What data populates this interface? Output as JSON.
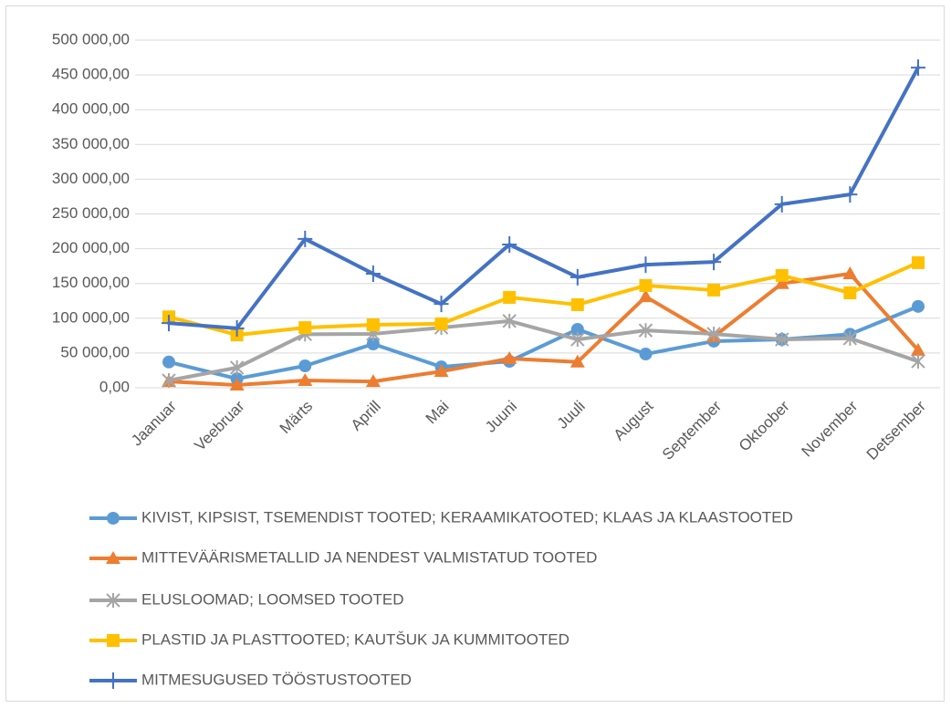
{
  "chart_data": {
    "type": "line",
    "categories": [
      "Jaanuar",
      "Veebruar",
      "Märts",
      "Aprill",
      "Mai",
      "Juuni",
      "Juuli",
      "August",
      "September",
      "Oktoober",
      "November",
      "Detsember"
    ],
    "series": [
      {
        "name": "KIVIST, KIPSIST, TSEMENDIST TOOTED; KERAAMIKATOOTED; KLAAS JA KLAASTOOTED",
        "color": "#5b9bd5",
        "marker": "circle",
        "values": [
          37000,
          13000,
          31500,
          63000,
          30000,
          38000,
          84000,
          48500,
          67000,
          69500,
          77000,
          117000
        ]
      },
      {
        "name": "MITTEVÄÄRISMETALLID JA NENDEST VALMISTATUD TOOTED",
        "color": "#ed7d31",
        "marker": "triangle",
        "values": [
          9000,
          4000,
          10500,
          9000,
          23500,
          42000,
          37000,
          131000,
          73500,
          150000,
          164000,
          54000
        ]
      },
      {
        "name": "ELUSLOOMAD; LOOMSED TOOTED",
        "color": "#a5a5a5",
        "marker": "star",
        "values": [
          10500,
          29000,
          77000,
          77500,
          86500,
          96000,
          69500,
          82500,
          77500,
          69500,
          71000,
          38000
        ]
      },
      {
        "name": "PLASTID JA PLASTTOOTED; KAUTŠUK JA KUMMITOOTED",
        "color": "#ffc000",
        "marker": "square",
        "values": [
          102000,
          76000,
          86500,
          90500,
          92000,
          130000,
          119500,
          147000,
          140500,
          161500,
          136500,
          180000
        ]
      },
      {
        "name": "MITMESUGUSED TÖÖSTUSTOOTED",
        "color": "#4472c4",
        "marker": "plus",
        "values": [
          93000,
          85500,
          214000,
          164000,
          120500,
          206000,
          159000,
          177000,
          181000,
          264000,
          278000,
          460500
        ]
      }
    ],
    "ylim": [
      0,
      500000
    ],
    "yticks": [
      {
        "value": 0,
        "label": "0,00"
      },
      {
        "value": 50000,
        "label": "50 000,00"
      },
      {
        "value": 100000,
        "label": "100 000,00"
      },
      {
        "value": 150000,
        "label": "150 000,00"
      },
      {
        "value": 200000,
        "label": "200 000,00"
      },
      {
        "value": 250000,
        "label": "250 000,00"
      },
      {
        "value": 300000,
        "label": "300 000,00"
      },
      {
        "value": 350000,
        "label": "350 000,00"
      },
      {
        "value": 400000,
        "label": "400 000,00"
      },
      {
        "value": 450000,
        "label": "450 000,00"
      },
      {
        "value": 500000,
        "label": "500 000,00"
      }
    ],
    "grid": true,
    "legend": "bottom"
  }
}
